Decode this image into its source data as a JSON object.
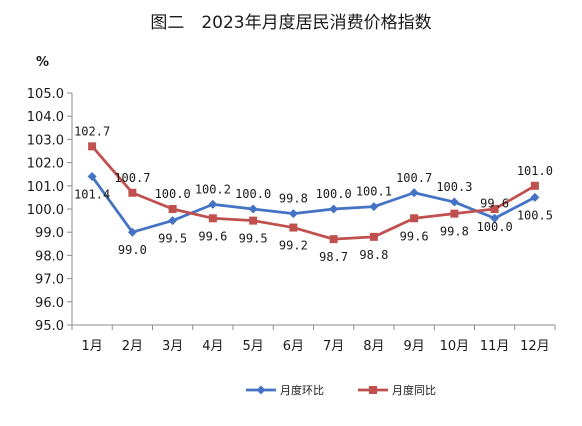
{
  "chart_data": {
    "type": "line",
    "title": "图二　2023年月度居民消费价格指数",
    "unit": "%",
    "categories": [
      "1月",
      "2月",
      "3月",
      "4月",
      "5月",
      "6月",
      "7月",
      "8月",
      "9月",
      "10月",
      "11月",
      "12月"
    ],
    "ylim": [
      95.0,
      105.0
    ],
    "yticks": [
      "95.0",
      "96.0",
      "97.0",
      "98.0",
      "99.0",
      "100.0",
      "101.0",
      "102.0",
      "103.0",
      "104.0",
      "105.0"
    ],
    "grid": false,
    "legend_position": "bottom",
    "series": [
      {
        "name": "月度环比",
        "color": "#4472C4",
        "marker": "diamond",
        "values": [
          101.4,
          99.0,
          99.5,
          100.2,
          100.0,
          99.8,
          100.0,
          100.1,
          100.7,
          100.3,
          99.6,
          100.5
        ],
        "labels": [
          "101.4",
          "99.0",
          "99.5",
          "100.2",
          "100.0",
          "99.8",
          "100.0",
          "100.1",
          "100.7",
          "100.3",
          "99.6",
          "100.5"
        ]
      },
      {
        "name": "月度同比",
        "color": "#C0504D",
        "marker": "square",
        "values": [
          102.7,
          100.7,
          100.0,
          99.6,
          99.5,
          99.2,
          98.7,
          98.8,
          99.6,
          99.8,
          100.0,
          101.0
        ],
        "labels": [
          "102.7",
          "100.7",
          "100.0",
          "99.6",
          "99.5",
          "99.2",
          "98.7",
          "98.8",
          "99.6",
          "99.8",
          "100.0",
          "101.0"
        ]
      }
    ]
  }
}
